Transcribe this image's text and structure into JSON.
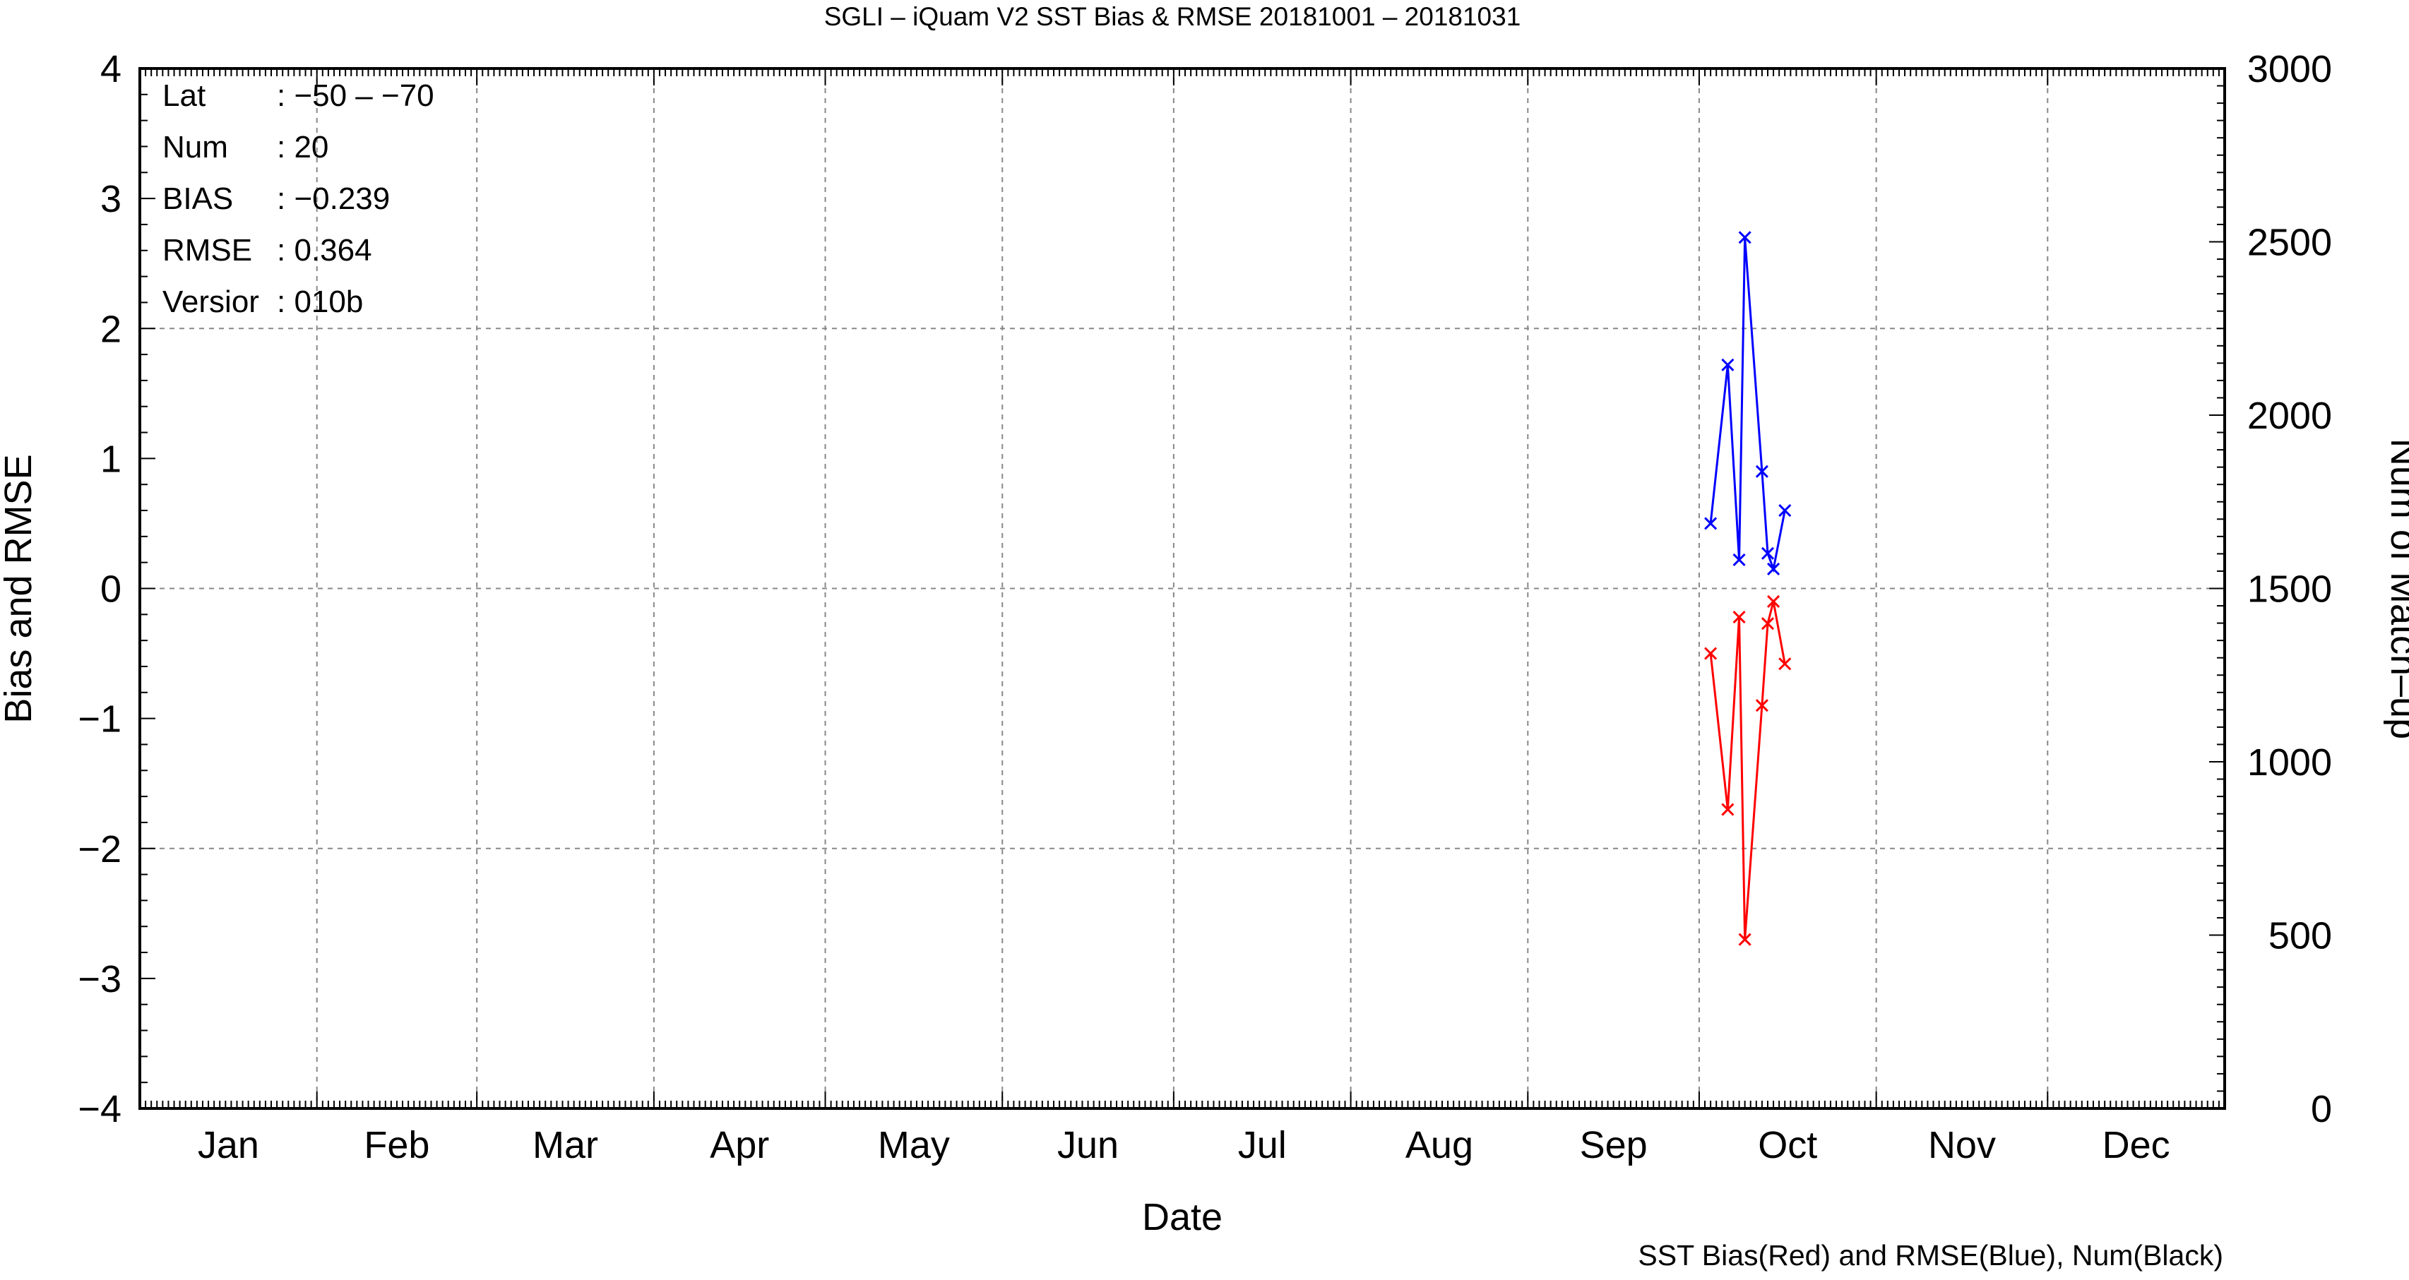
{
  "chart_data": {
    "type": "line",
    "title": "SGLI – iQuam V2 SST Bias & RMSE 20181001 – 20181031",
    "xlabel": "Date",
    "ylabel": "Bias and RMSE",
    "y2label": "Num of Match–up",
    "footnote": "SST Bias(Red) and RMSE(Blue), Num(Black)",
    "xlim": [
      0,
      365
    ],
    "ylim": [
      -4,
      4
    ],
    "y2lim": [
      0,
      3000
    ],
    "yticks": [
      "4",
      "3",
      "2",
      "1",
      "0",
      "−1",
      "−2",
      "−3",
      "−4"
    ],
    "y2ticks": [
      "3000",
      "2500",
      "2000",
      "1500",
      "1000",
      "500",
      "0"
    ],
    "months": [
      "Jan",
      "Feb",
      "Mar",
      "Apr",
      "May",
      "Jun",
      "Jul",
      "Aug",
      "Sep",
      "Oct",
      "Nov",
      "Dec"
    ],
    "grid": true,
    "stats": [
      {
        "key": "Lat",
        "value": ": −50 – −70"
      },
      {
        "key": "Num",
        "value": ": 20"
      },
      {
        "key": "BIAS",
        "value": ": −0.239"
      },
      {
        "key": "RMSE",
        "value": ": 0.364"
      },
      {
        "key": "Versior",
        "value": ": 010b"
      }
    ],
    "series": [
      {
        "color": "#ff0000",
        "x": [
          "2018-10-03",
          "2018-10-06",
          "2018-10-08",
          "2018-10-09",
          "2018-10-12",
          "2018-10-13",
          "2018-10-14",
          "2018-10-16"
        ],
        "y": [
          -0.5,
          -1.7,
          -0.22,
          -2.7,
          -0.9,
          -0.27,
          -0.1,
          -0.58
        ]
      },
      {
        "color": "#0000ff",
        "x": [
          "2018-10-03",
          "2018-10-06",
          "2018-10-08",
          "2018-10-09",
          "2018-10-12",
          "2018-10-13",
          "2018-10-14",
          "2018-10-16"
        ],
        "y": [
          0.5,
          1.72,
          0.22,
          2.7,
          0.9,
          0.27,
          0.15,
          0.6
        ]
      }
    ]
  }
}
